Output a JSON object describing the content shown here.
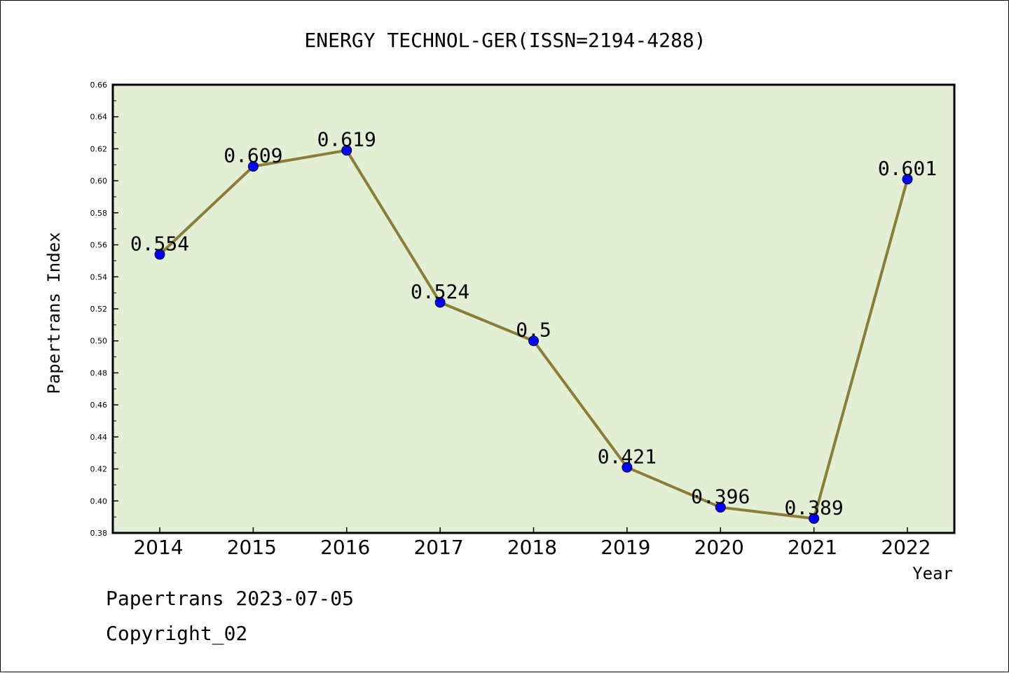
{
  "chart_data": {
    "type": "line",
    "title": "ENERGY TECHNOL-GER(ISSN=2194-4288)",
    "xlabel": "Year",
    "ylabel": "Papertrans Index",
    "categories": [
      "2014",
      "2015",
      "2016",
      "2017",
      "2018",
      "2019",
      "2020",
      "2021",
      "2022"
    ],
    "values": [
      0.554,
      0.609,
      0.619,
      0.524,
      0.5,
      0.421,
      0.396,
      0.389,
      0.601
    ],
    "labels": [
      "0.554",
      "0.609",
      "0.619",
      "0.524",
      "0.5",
      "0.421",
      "0.396",
      "0.389",
      "0.601"
    ],
    "ylim": [
      0.38,
      0.66
    ],
    "yticks": [
      "0.38",
      "0.40",
      "0.42",
      "0.44",
      "0.46",
      "0.48",
      "0.50",
      "0.52",
      "0.54",
      "0.56",
      "0.58",
      "0.60",
      "0.62",
      "0.64",
      "0.66"
    ],
    "grid": false,
    "colors": {
      "plot_background": "#e2efd5",
      "line": "#8b7d35",
      "marker": "#0000ff"
    }
  },
  "footer": {
    "line1": "Papertrans 2023-07-05",
    "line2": "Copyright_02"
  }
}
